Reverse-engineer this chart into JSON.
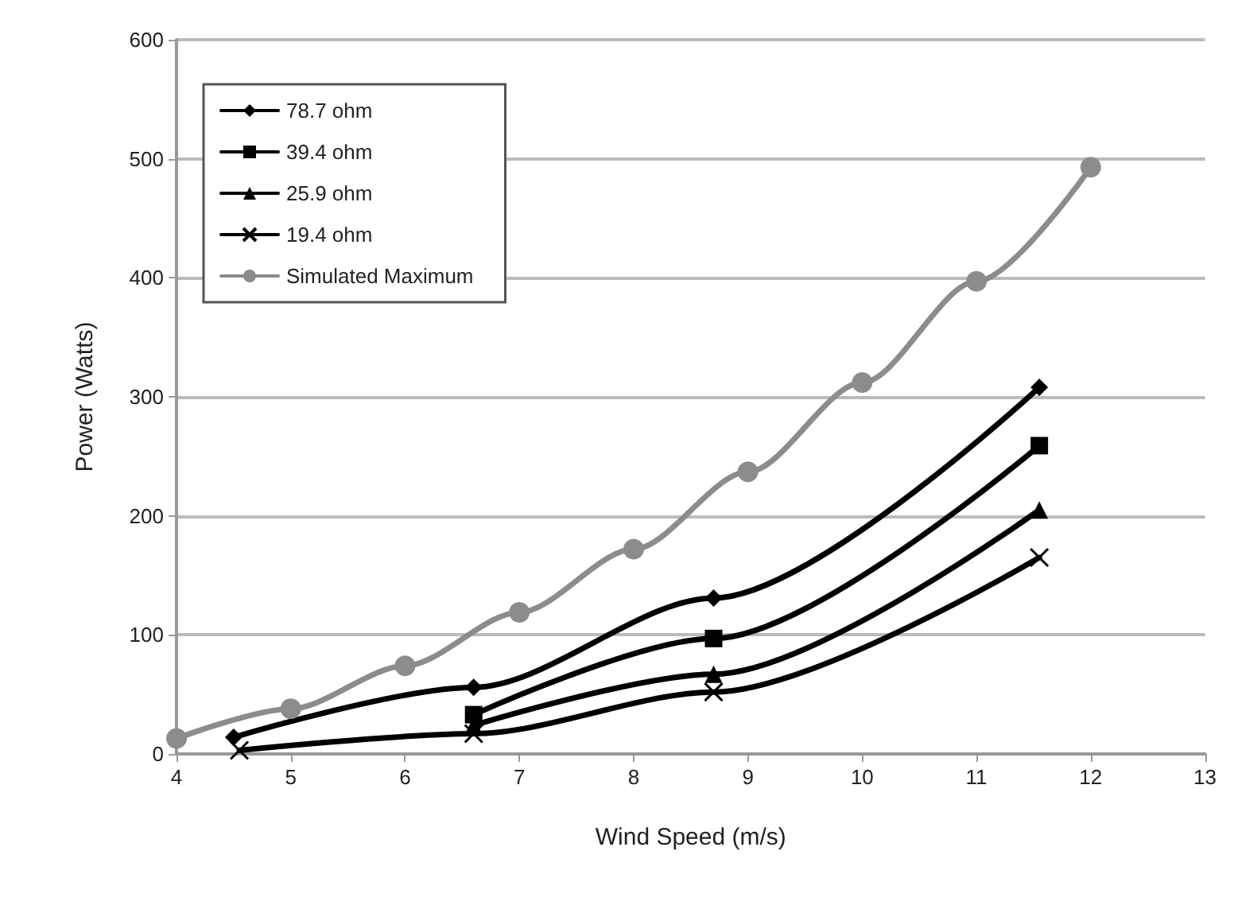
{
  "chart_data": {
    "type": "line",
    "xlabel": "Wind Speed (m/s)",
    "ylabel": "Power (Watts)",
    "xlim": [
      4,
      13
    ],
    "xticks": [
      4,
      5,
      6,
      7,
      8,
      9,
      10,
      11,
      12,
      13
    ],
    "ylim": [
      0,
      600
    ],
    "yticks": [
      0,
      100,
      200,
      300,
      400,
      500,
      600
    ],
    "grid": "y",
    "legend": "top left",
    "line_style": "solid",
    "series": [
      {
        "name": "78.7 ohm",
        "color": "#000000",
        "marker": "diamond",
        "x": [
          4.5,
          6.6,
          8.7,
          11.55
        ],
        "values": [
          14,
          56,
          131,
          308
        ]
      },
      {
        "name": "39.4 ohm",
        "color": "#000000",
        "marker": "square",
        "x": [
          6.6,
          8.7,
          11.55
        ],
        "values": [
          33,
          97,
          259
        ]
      },
      {
        "name": "25.9 ohm",
        "color": "#000000",
        "marker": "triangle",
        "x": [
          6.6,
          8.7,
          11.55
        ],
        "values": [
          24,
          67,
          205
        ]
      },
      {
        "name": "19.4 ohm",
        "color": "#000000",
        "marker": "cross",
        "x": [
          4.55,
          6.6,
          8.7,
          11.55
        ],
        "values": [
          3,
          17,
          52,
          165
        ]
      },
      {
        "name": "Simulated Maximum",
        "color": "#8c8c8c",
        "marker": "circle",
        "x": [
          4,
          5,
          6,
          7,
          8,
          9,
          10,
          11,
          12
        ],
        "values": [
          13,
          38,
          74,
          119,
          172,
          237,
          312,
          397,
          493
        ]
      }
    ]
  }
}
